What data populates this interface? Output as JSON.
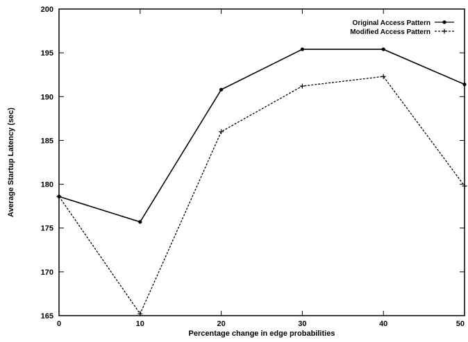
{
  "chart_data": {
    "type": "line",
    "title": "",
    "xlabel": "Percentage change in edge probabilities",
    "ylabel": "Average Startup Latency (sec)",
    "x": [
      0,
      10,
      20,
      30,
      40,
      50
    ],
    "xlim": [
      0,
      50
    ],
    "ylim": [
      165,
      200
    ],
    "x_ticks": [
      "0",
      "10",
      "20",
      "30",
      "40",
      "50"
    ],
    "y_ticks": [
      "165",
      "170",
      "175",
      "180",
      "185",
      "190",
      "195",
      "200"
    ],
    "grid": false,
    "legend_position": "top-right",
    "series": [
      {
        "name": "Original Access Pattern",
        "style": "solid",
        "color": "#000000",
        "marker": "dot",
        "values": [
          178.6,
          175.7,
          190.8,
          195.4,
          195.4,
          191.4
        ]
      },
      {
        "name": "Modified Access Pattern",
        "style": "dashed",
        "color": "#000000",
        "marker": "plus",
        "values": [
          178.6,
          165.2,
          186.0,
          191.2,
          192.3,
          179.8
        ]
      }
    ]
  }
}
